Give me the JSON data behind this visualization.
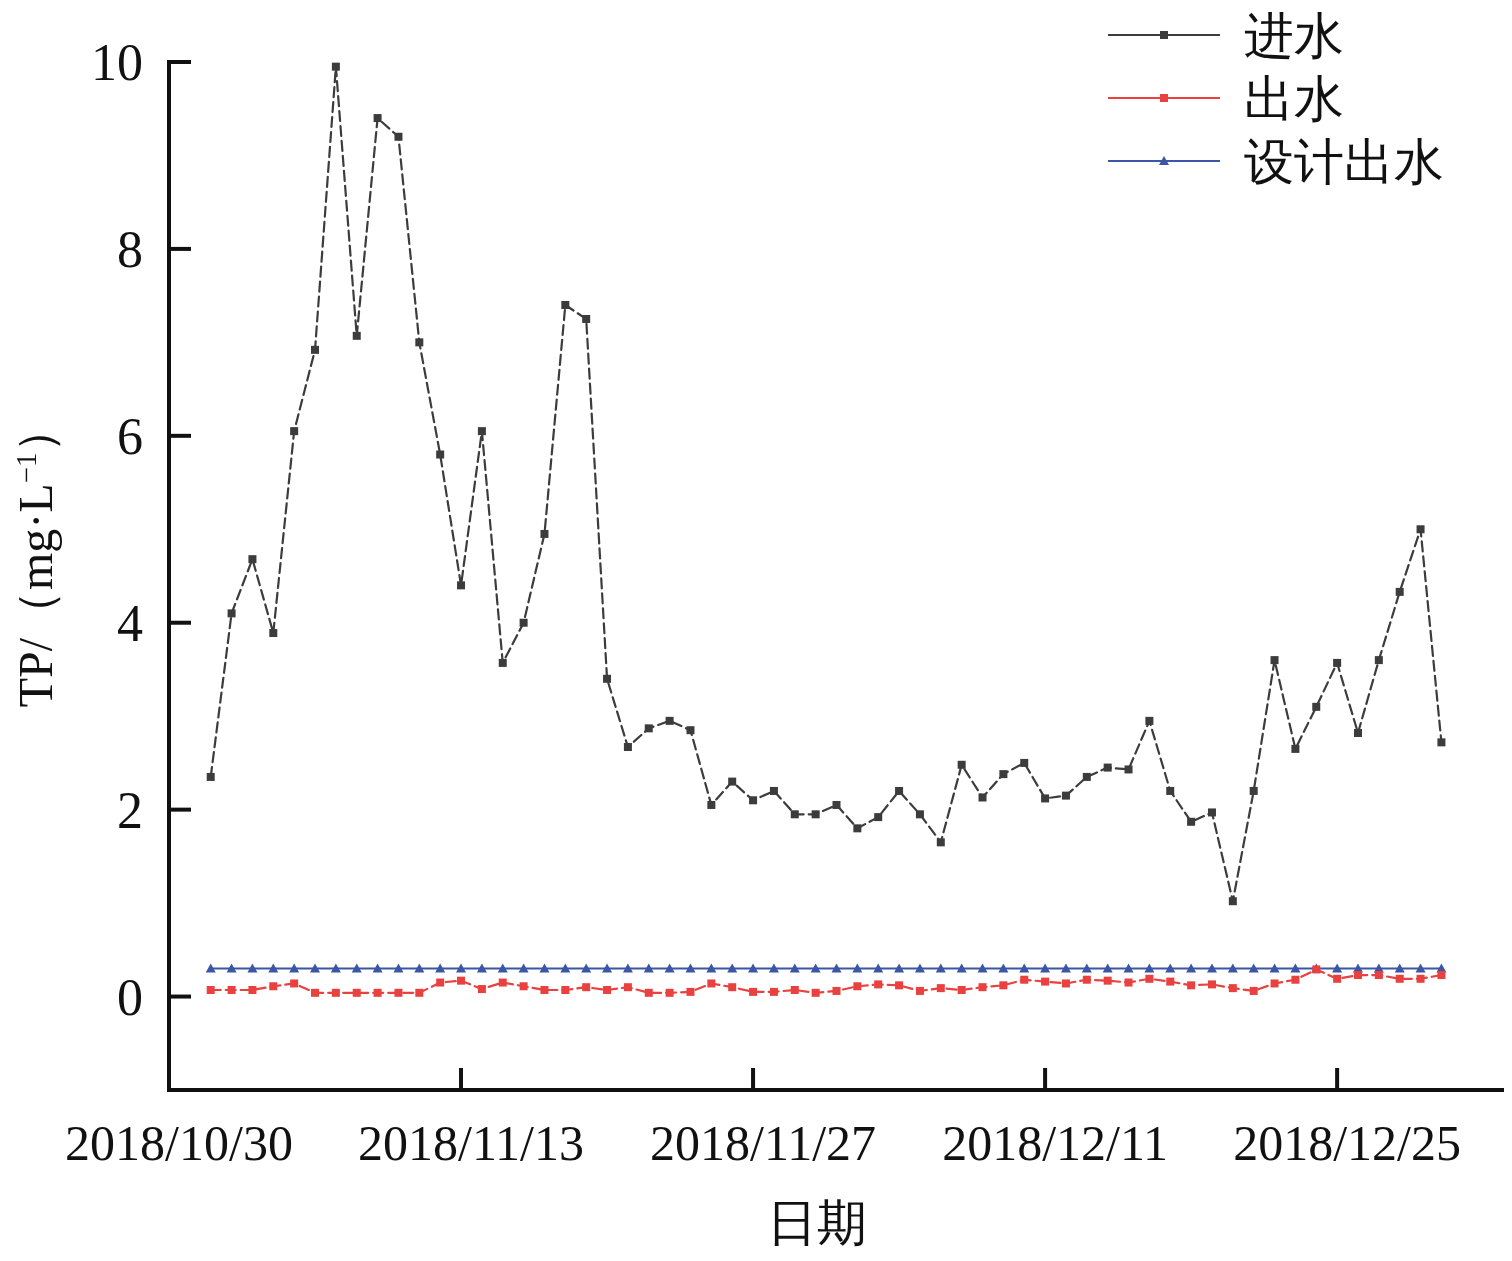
{
  "chart_data": {
    "type": "line",
    "xlabel": "日期",
    "ylabel": "TP/（mg·L$^{−1}$）",
    "x": [
      "2018-11-01",
      "2018-11-02",
      "2018-11-03",
      "2018-11-04",
      "2018-11-05",
      "2018-11-06",
      "2018-11-07",
      "2018-11-08",
      "2018-11-09",
      "2018-11-10",
      "2018-11-11",
      "2018-11-12",
      "2018-11-13",
      "2018-11-14",
      "2018-11-15",
      "2018-11-16",
      "2018-11-17",
      "2018-11-18",
      "2018-11-19",
      "2018-11-20",
      "2018-11-21",
      "2018-11-22",
      "2018-11-23",
      "2018-11-24",
      "2018-11-25",
      "2018-11-26",
      "2018-11-27",
      "2018-11-28",
      "2018-11-29",
      "2018-11-30",
      "2018-12-01",
      "2018-12-02",
      "2018-12-03",
      "2018-12-04",
      "2018-12-05",
      "2018-12-06",
      "2018-12-07",
      "2018-12-08",
      "2018-12-09",
      "2018-12-10",
      "2018-12-11",
      "2018-12-12",
      "2018-12-13",
      "2018-12-14",
      "2018-12-15",
      "2018-12-16",
      "2018-12-17",
      "2018-12-18",
      "2018-12-19",
      "2018-12-20",
      "2018-12-21",
      "2018-12-22",
      "2018-12-23",
      "2018-12-24",
      "2018-12-25",
      "2018-12-26",
      "2018-12-27",
      "2018-12-28",
      "2018-12-29",
      "2018-12-30"
    ],
    "series": [
      {
        "name": "进水",
        "color": "#3c3c3c",
        "marker": "square",
        "line_style": "dashed",
        "values": [
          2.35,
          4.1,
          4.68,
          3.89,
          6.05,
          6.92,
          9.95,
          7.07,
          9.4,
          9.2,
          7.0,
          5.8,
          4.4,
          6.05,
          3.57,
          4.0,
          4.95,
          7.4,
          7.25,
          3.4,
          2.67,
          2.87,
          2.95,
          2.85,
          2.05,
          2.3,
          2.1,
          2.2,
          1.95,
          1.95,
          2.05,
          1.8,
          1.92,
          2.2,
          1.95,
          1.65,
          2.48,
          2.13,
          2.38,
          2.5,
          2.12,
          2.15,
          2.35,
          2.45,
          2.43,
          2.95,
          2.2,
          1.87,
          1.97,
          1.02,
          2.2,
          3.6,
          2.65,
          3.1,
          3.57,
          2.82,
          3.6,
          4.33,
          5.0,
          2.72
        ]
      },
      {
        "name": "出水",
        "color": "#e8413f",
        "marker": "square",
        "line_style": "dashed",
        "values": [
          0.07,
          0.07,
          0.07,
          0.11,
          0.14,
          0.04,
          0.04,
          0.04,
          0.04,
          0.04,
          0.04,
          0.15,
          0.17,
          0.08,
          0.15,
          0.11,
          0.07,
          0.07,
          0.1,
          0.07,
          0.1,
          0.04,
          0.04,
          0.05,
          0.14,
          0.1,
          0.05,
          0.05,
          0.07,
          0.04,
          0.06,
          0.11,
          0.13,
          0.12,
          0.06,
          0.09,
          0.07,
          0.1,
          0.12,
          0.18,
          0.16,
          0.14,
          0.18,
          0.17,
          0.15,
          0.19,
          0.16,
          0.12,
          0.13,
          0.09,
          0.06,
          0.14,
          0.18,
          0.29,
          0.19,
          0.23,
          0.23,
          0.19,
          0.19,
          0.23
        ]
      },
      {
        "name": "设计出水",
        "color": "#3a56a4",
        "marker": "triangle",
        "line_style": "solid",
        "values": [
          0.3,
          0.3,
          0.3,
          0.3,
          0.3,
          0.3,
          0.3,
          0.3,
          0.3,
          0.3,
          0.3,
          0.3,
          0.3,
          0.3,
          0.3,
          0.3,
          0.3,
          0.3,
          0.3,
          0.3,
          0.3,
          0.3,
          0.3,
          0.3,
          0.3,
          0.3,
          0.3,
          0.3,
          0.3,
          0.3,
          0.3,
          0.3,
          0.3,
          0.3,
          0.3,
          0.3,
          0.3,
          0.3,
          0.3,
          0.3,
          0.3,
          0.3,
          0.3,
          0.3,
          0.3,
          0.3,
          0.3,
          0.3,
          0.3,
          0.3,
          0.3,
          0.3,
          0.3,
          0.3,
          0.3,
          0.3,
          0.3,
          0.3,
          0.3,
          0.3
        ]
      }
    ],
    "xlim": [
      "2018-10-30",
      "2019-01-02"
    ],
    "xticks": [
      {
        "value": "2018-10-30",
        "label": "2018/10/30"
      },
      {
        "value": "2018-11-13",
        "label": "2018/11/13"
      },
      {
        "value": "2018-11-27",
        "label": "2018/11/27"
      },
      {
        "value": "2018-12-11",
        "label": "2018/12/11"
      },
      {
        "value": "2018-12-25",
        "label": "2018/12/25"
      }
    ],
    "ylim": [
      -1,
      10
    ],
    "yticks": [
      0,
      2,
      4,
      6,
      8,
      10
    ],
    "grid": false,
    "legend": "top right"
  }
}
